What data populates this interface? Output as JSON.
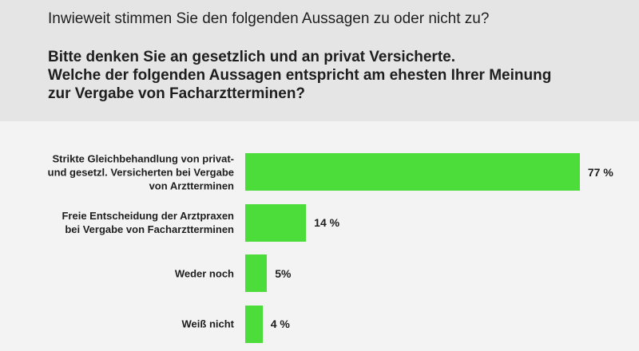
{
  "chart_data": {
    "type": "bar",
    "orientation": "horizontal",
    "title": "Inwieweit stimmen Sie den folgenden Aussagen zu oder nicht zu?",
    "subtitle": "Bitte denken Sie an gesetzlich und an privat Versicherte.\nWelche der folgenden Aussagen entspricht am ehesten Ihrer Meinung\nzur Vergabe von Facharztterminen?",
    "categories": [
      "Strikte Gleichbehandlung von privat-\nund gesetzl. Versicherten bei Vergabe\nvon Arztterminen",
      "Freie Entscheidung der Arztpraxen\nbei Vergabe von Facharztterminen",
      "Weder noch",
      "Weiß nicht"
    ],
    "values": [
      77,
      14,
      5,
      4
    ],
    "value_labels": [
      "77 %",
      "14 %",
      "5%",
      "4 %"
    ],
    "color": "#4ddd3a"
  }
}
